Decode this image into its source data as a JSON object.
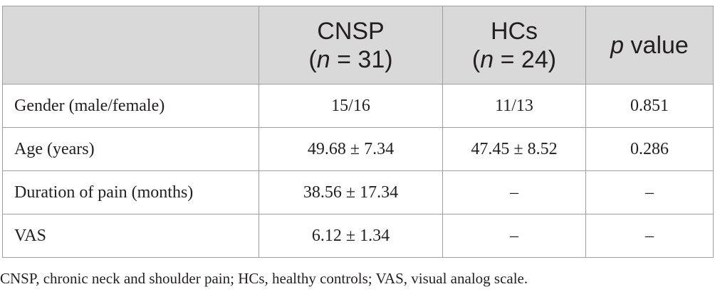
{
  "table": {
    "headers": {
      "col1": "",
      "col2": {
        "name": "CNSP",
        "n_prefix": "(",
        "n_symbol": "n",
        "n_suffix": " = 31)"
      },
      "col3": {
        "name": "HCs",
        "n_prefix": "(",
        "n_symbol": "n",
        "n_suffix": " = 24)"
      },
      "col4": {
        "p_symbol": "p",
        "label": " value"
      }
    },
    "rows": [
      {
        "label": "Gender (male/female)",
        "cnsp": "15/16",
        "hcs": "11/13",
        "p": "0.851"
      },
      {
        "label": "Age (years)",
        "cnsp": "49.68 ± 7.34",
        "hcs": "47.45 ± 8.52",
        "p": "0.286"
      },
      {
        "label": "Duration of pain (months)",
        "cnsp": "38.56 ± 17.34",
        "hcs": "–",
        "p": "–"
      },
      {
        "label": "VAS",
        "cnsp": "6.12 ± 1.34",
        "hcs": "–",
        "p": "–"
      }
    ]
  },
  "footnote": "CNSP, chronic neck and shoulder pain; HCs, healthy controls; VAS, visual analog scale.",
  "colors": {
    "header_bg": "#d9d9d9",
    "border": "#9e9e9e",
    "text": "#231f20"
  }
}
